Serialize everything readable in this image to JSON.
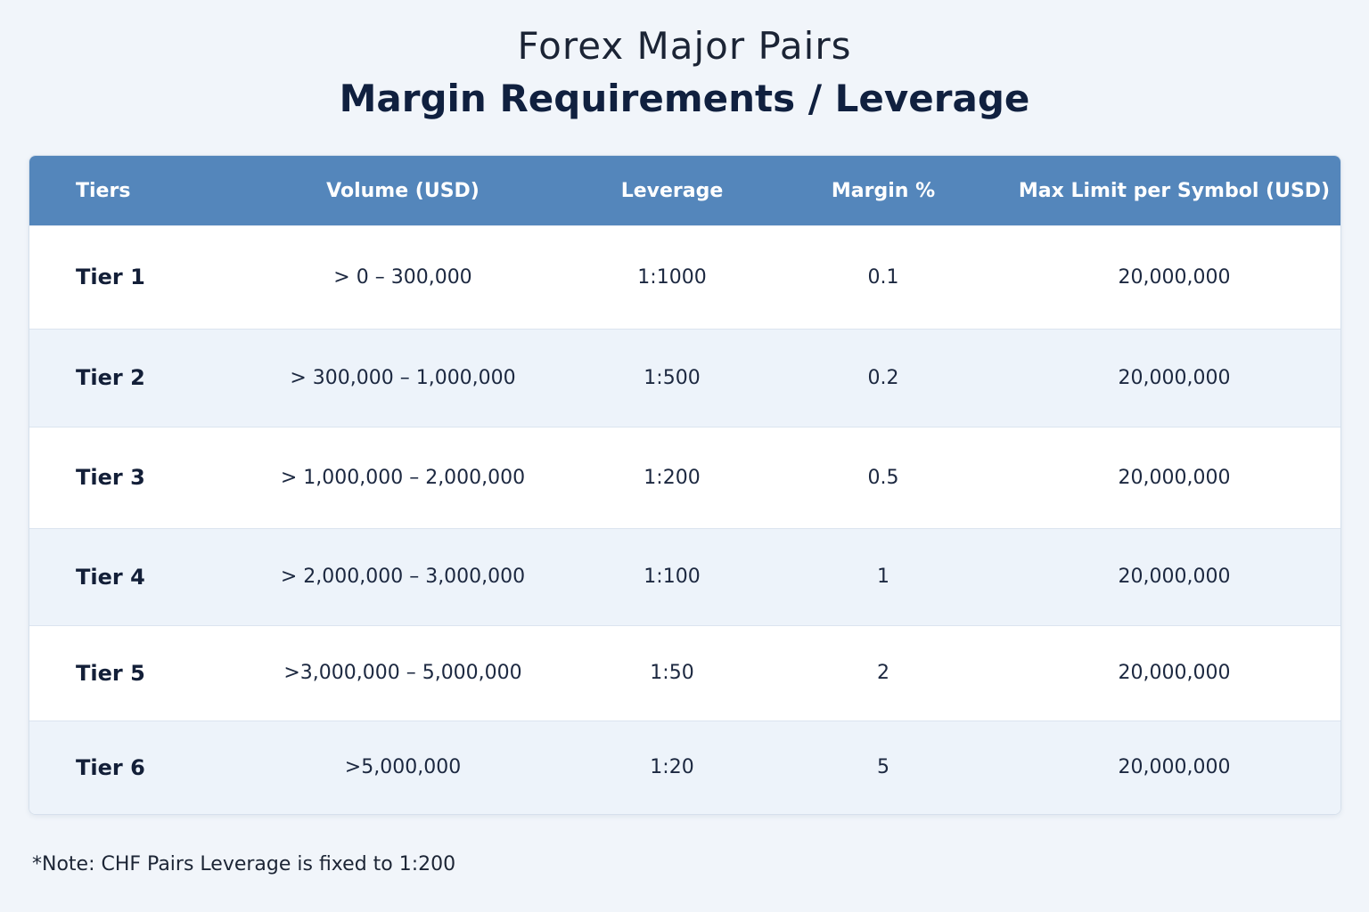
{
  "title": {
    "line1": "Forex Major Pairs",
    "line2": "Margin Requirements / Leverage"
  },
  "table": {
    "headers": [
      "Tiers",
      "Volume (USD)",
      "Leverage",
      "Margin  %",
      "Max Limit per Symbol (USD)"
    ],
    "rows": [
      {
        "tier": "Tier 1",
        "volume": "> 0 – 300,000",
        "leverage": "1:1000",
        "margin": "0.1",
        "max_limit": "20,000,000"
      },
      {
        "tier": "Tier 2",
        "volume": "> 300,000 – 1,000,000",
        "leverage": "1:500",
        "margin": "0.2",
        "max_limit": "20,000,000"
      },
      {
        "tier": "Tier 3",
        "volume": "> 1,000,000 – 2,000,000",
        "leverage": "1:200",
        "margin": "0.5",
        "max_limit": "20,000,000"
      },
      {
        "tier": "Tier 4",
        "volume": "> 2,000,000 – 3,000,000",
        "leverage": "1:100",
        "margin": "1",
        "max_limit": "20,000,000"
      },
      {
        "tier": "Tier 5",
        "volume": ">3,000,000 – 5,000,000",
        "leverage": "1:50",
        "margin": "2",
        "max_limit": "20,000,000"
      },
      {
        "tier": "Tier 6",
        "volume": ">5,000,000",
        "leverage": "1:20",
        "margin": "5",
        "max_limit": "20,000,000"
      }
    ]
  },
  "note": "*Note: CHF Pairs Leverage is fixed to 1:200",
  "colors": {
    "background": "#f1f5fa",
    "header_bg": "#5486bb",
    "header_text": "#ffffff",
    "row_alt": "#edf3fa",
    "title_text": "#10203f"
  }
}
